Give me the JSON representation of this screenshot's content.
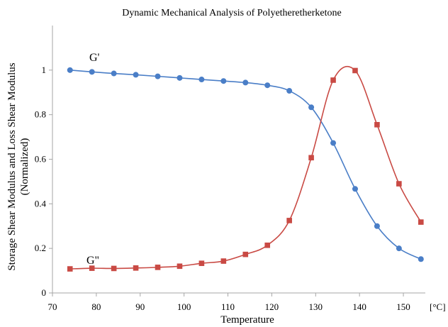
{
  "chart_data": {
    "type": "line",
    "title": "Dynamic Mechanical Analysis of Polyetheretherketone",
    "xlabel": "Temperature",
    "x_unit": "[°C]",
    "ylabel": [
      "Storage Shear Modulus and Loss Shear Modulus",
      "(Normalized)"
    ],
    "xlim": [
      70,
      155
    ],
    "ylim": [
      0,
      1.2
    ],
    "x_ticks": [
      "70",
      "80",
      "90",
      "100",
      "110",
      "120",
      "130",
      "140",
      "150"
    ],
    "y_ticks": [
      "0",
      "0.2",
      "0.4",
      "0.6",
      "0.8",
      "1"
    ],
    "grid": false,
    "legend": "none (series labeled directly on chart)",
    "x": [
      74,
      79,
      84,
      89,
      94,
      99,
      104,
      109,
      114,
      119,
      124,
      129,
      134,
      139,
      144,
      149,
      154
    ],
    "series": [
      {
        "name": "G'",
        "color": "#4a7ec7",
        "marker": "circle",
        "values": [
          1.0,
          0.992,
          0.985,
          0.979,
          0.972,
          0.965,
          0.958,
          0.951,
          0.944,
          0.932,
          0.907,
          0.833,
          0.673,
          0.467,
          0.3,
          0.2,
          0.152
        ]
      },
      {
        "name": "G\"",
        "color": "#c94a44",
        "marker": "square",
        "values": [
          0.108,
          0.111,
          0.11,
          0.112,
          0.115,
          0.12,
          0.133,
          0.143,
          0.173,
          0.214,
          0.325,
          0.607,
          0.955,
          0.998,
          0.755,
          0.49,
          0.318
        ]
      }
    ]
  }
}
